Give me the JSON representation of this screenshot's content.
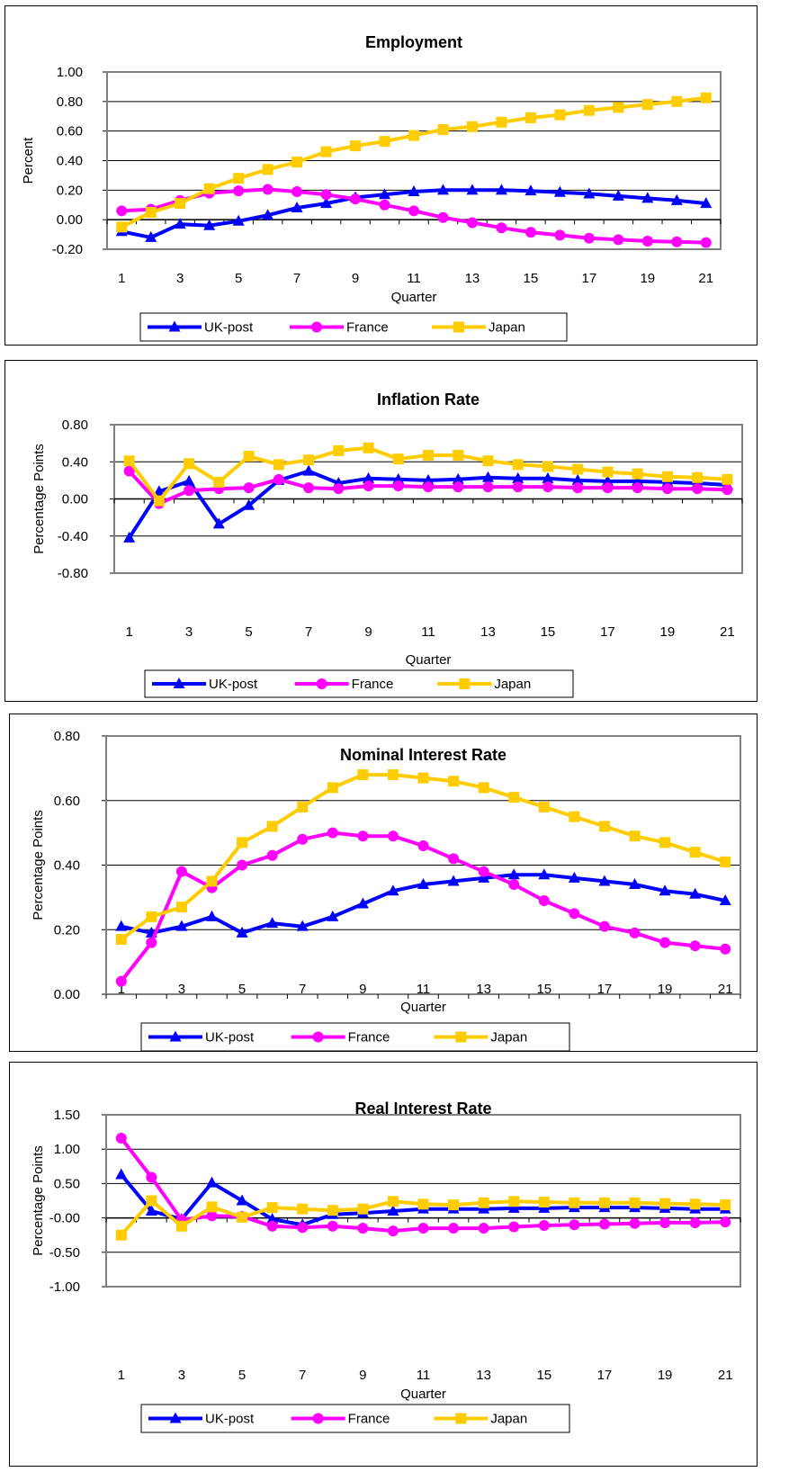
{
  "legend_placement": "bottom",
  "series_style": [
    {
      "name": "UK-post",
      "color": "#0000ff",
      "marker": "triangle"
    },
    {
      "name": "France",
      "color": "#ff00ff",
      "marker": "circle"
    },
    {
      "name": "Japan",
      "color": "#ffcc00",
      "marker": "square"
    }
  ],
  "chart_data": [
    {
      "type": "line",
      "title": "Employment",
      "xlabel": "Quarter",
      "ylabel": "Percent",
      "ylim": [
        -0.2,
        1.0
      ],
      "yticks": [
        "-0.20",
        "0.00",
        "0.20",
        "0.40",
        "0.60",
        "0.80",
        "1.00"
      ],
      "xticks": [
        "1",
        "3",
        "5",
        "7",
        "9",
        "11",
        "13",
        "15",
        "17",
        "19",
        "21"
      ],
      "x": [
        1,
        2,
        3,
        4,
        5,
        6,
        7,
        8,
        9,
        10,
        11,
        12,
        13,
        14,
        15,
        16,
        17,
        18,
        19,
        20,
        21
      ],
      "grid": true,
      "series": [
        {
          "name": "UK-post",
          "values": [
            -0.08,
            -0.12,
            -0.03,
            -0.04,
            -0.01,
            0.03,
            0.08,
            0.11,
            0.15,
            0.17,
            0.19,
            0.2,
            0.2,
            0.2,
            0.195,
            0.185,
            0.175,
            0.16,
            0.145,
            0.13,
            0.11
          ]
        },
        {
          "name": "France",
          "values": [
            0.06,
            0.07,
            0.13,
            0.18,
            0.195,
            0.205,
            0.19,
            0.17,
            0.14,
            0.1,
            0.06,
            0.015,
            -0.02,
            -0.055,
            -0.085,
            -0.105,
            -0.125,
            -0.135,
            -0.145,
            -0.15,
            -0.155
          ]
        },
        {
          "name": "Japan",
          "values": [
            -0.05,
            0.05,
            0.11,
            0.21,
            0.28,
            0.34,
            0.39,
            0.46,
            0.5,
            0.53,
            0.57,
            0.61,
            0.63,
            0.66,
            0.69,
            0.71,
            0.74,
            0.76,
            0.78,
            0.8,
            0.825
          ]
        }
      ]
    },
    {
      "type": "line",
      "title": "Inflation Rate",
      "xlabel": "Quarter",
      "ylabel": "Percentage Points",
      "ylim": [
        -0.8,
        0.8
      ],
      "yticks": [
        "-0.80",
        "-0.40",
        "0.00",
        "0.40",
        "0.80"
      ],
      "xticks": [
        "1",
        "3",
        "5",
        "7",
        "9",
        "11",
        "13",
        "15",
        "17",
        "19",
        "21"
      ],
      "x": [
        1,
        2,
        3,
        4,
        5,
        6,
        7,
        8,
        9,
        10,
        11,
        12,
        13,
        14,
        15,
        16,
        17,
        18,
        19,
        20,
        21
      ],
      "grid": true,
      "series": [
        {
          "name": "UK-post",
          "values": [
            -0.42,
            0.08,
            0.19,
            -0.27,
            -0.07,
            0.2,
            0.3,
            0.17,
            0.22,
            0.21,
            0.2,
            0.21,
            0.23,
            0.22,
            0.22,
            0.2,
            0.19,
            0.19,
            0.18,
            0.17,
            0.15
          ]
        },
        {
          "name": "France",
          "values": [
            0.3,
            -0.05,
            0.09,
            0.11,
            0.12,
            0.21,
            0.12,
            0.11,
            0.14,
            0.14,
            0.13,
            0.13,
            0.13,
            0.13,
            0.13,
            0.12,
            0.12,
            0.12,
            0.11,
            0.11,
            0.1
          ]
        },
        {
          "name": "Japan",
          "values": [
            0.41,
            -0.02,
            0.38,
            0.18,
            0.46,
            0.37,
            0.42,
            0.52,
            0.55,
            0.43,
            0.47,
            0.47,
            0.41,
            0.37,
            0.35,
            0.32,
            0.29,
            0.27,
            0.24,
            0.23,
            0.21
          ]
        }
      ]
    },
    {
      "type": "line",
      "title": "Nominal Interest Rate",
      "xlabel": "Quarter",
      "ylabel": "Percentage Points",
      "ylim": [
        0.0,
        0.8
      ],
      "yticks": [
        "0.00",
        "0.20",
        "0.40",
        "0.60",
        "0.80"
      ],
      "xticks": [
        "1",
        "3",
        "5",
        "7",
        "9",
        "11",
        "13",
        "15",
        "17",
        "19",
        "21"
      ],
      "x": [
        1,
        2,
        3,
        4,
        5,
        6,
        7,
        8,
        9,
        10,
        11,
        12,
        13,
        14,
        15,
        16,
        17,
        18,
        19,
        20,
        21
      ],
      "grid": true,
      "series": [
        {
          "name": "UK-post",
          "values": [
            0.21,
            0.19,
            0.21,
            0.24,
            0.19,
            0.22,
            0.21,
            0.24,
            0.28,
            0.32,
            0.34,
            0.35,
            0.36,
            0.37,
            0.37,
            0.36,
            0.35,
            0.34,
            0.32,
            0.31,
            0.29
          ]
        },
        {
          "name": "France",
          "values": [
            0.04,
            0.16,
            0.38,
            0.33,
            0.4,
            0.43,
            0.48,
            0.5,
            0.49,
            0.49,
            0.46,
            0.42,
            0.38,
            0.34,
            0.29,
            0.25,
            0.21,
            0.19,
            0.16,
            0.15,
            0.14
          ]
        },
        {
          "name": "Japan",
          "values": [
            0.17,
            0.24,
            0.27,
            0.35,
            0.47,
            0.52,
            0.58,
            0.64,
            0.68,
            0.68,
            0.67,
            0.66,
            0.64,
            0.61,
            0.58,
            0.55,
            0.52,
            0.49,
            0.47,
            0.44,
            0.41
          ]
        }
      ]
    },
    {
      "type": "line",
      "title": "Real Interest Rate",
      "xlabel": "Quarter",
      "ylabel": "Percentage Points",
      "ylim": [
        -1.0,
        1.5
      ],
      "yticks": [
        "-1.00",
        "-0.50",
        "-0.00",
        "0.50",
        "1.00",
        "1.50"
      ],
      "xticks": [
        "1",
        "3",
        "5",
        "7",
        "9",
        "11",
        "13",
        "15",
        "17",
        "19",
        "21"
      ],
      "x": [
        1,
        2,
        3,
        4,
        5,
        6,
        7,
        8,
        9,
        10,
        11,
        12,
        13,
        14,
        15,
        16,
        17,
        18,
        19,
        20,
        21
      ],
      "grid": true,
      "series": [
        {
          "name": "UK-post",
          "values": [
            0.63,
            0.1,
            -0.02,
            0.51,
            0.25,
            -0.02,
            -0.1,
            0.05,
            0.07,
            0.1,
            0.13,
            0.13,
            0.13,
            0.14,
            0.14,
            0.15,
            0.15,
            0.15,
            0.14,
            0.13,
            0.13
          ]
        },
        {
          "name": "France",
          "values": [
            1.16,
            0.59,
            -0.03,
            0.03,
            0.02,
            -0.12,
            -0.14,
            -0.12,
            -0.15,
            -0.19,
            -0.15,
            -0.15,
            -0.15,
            -0.13,
            -0.11,
            -0.1,
            -0.09,
            -0.08,
            -0.07,
            -0.07,
            -0.06
          ]
        },
        {
          "name": "Japan",
          "values": [
            -0.25,
            0.25,
            -0.12,
            0.16,
            0.01,
            0.15,
            0.13,
            0.11,
            0.13,
            0.24,
            0.2,
            0.19,
            0.22,
            0.24,
            0.23,
            0.22,
            0.22,
            0.22,
            0.21,
            0.2,
            0.19
          ]
        }
      ]
    }
  ]
}
